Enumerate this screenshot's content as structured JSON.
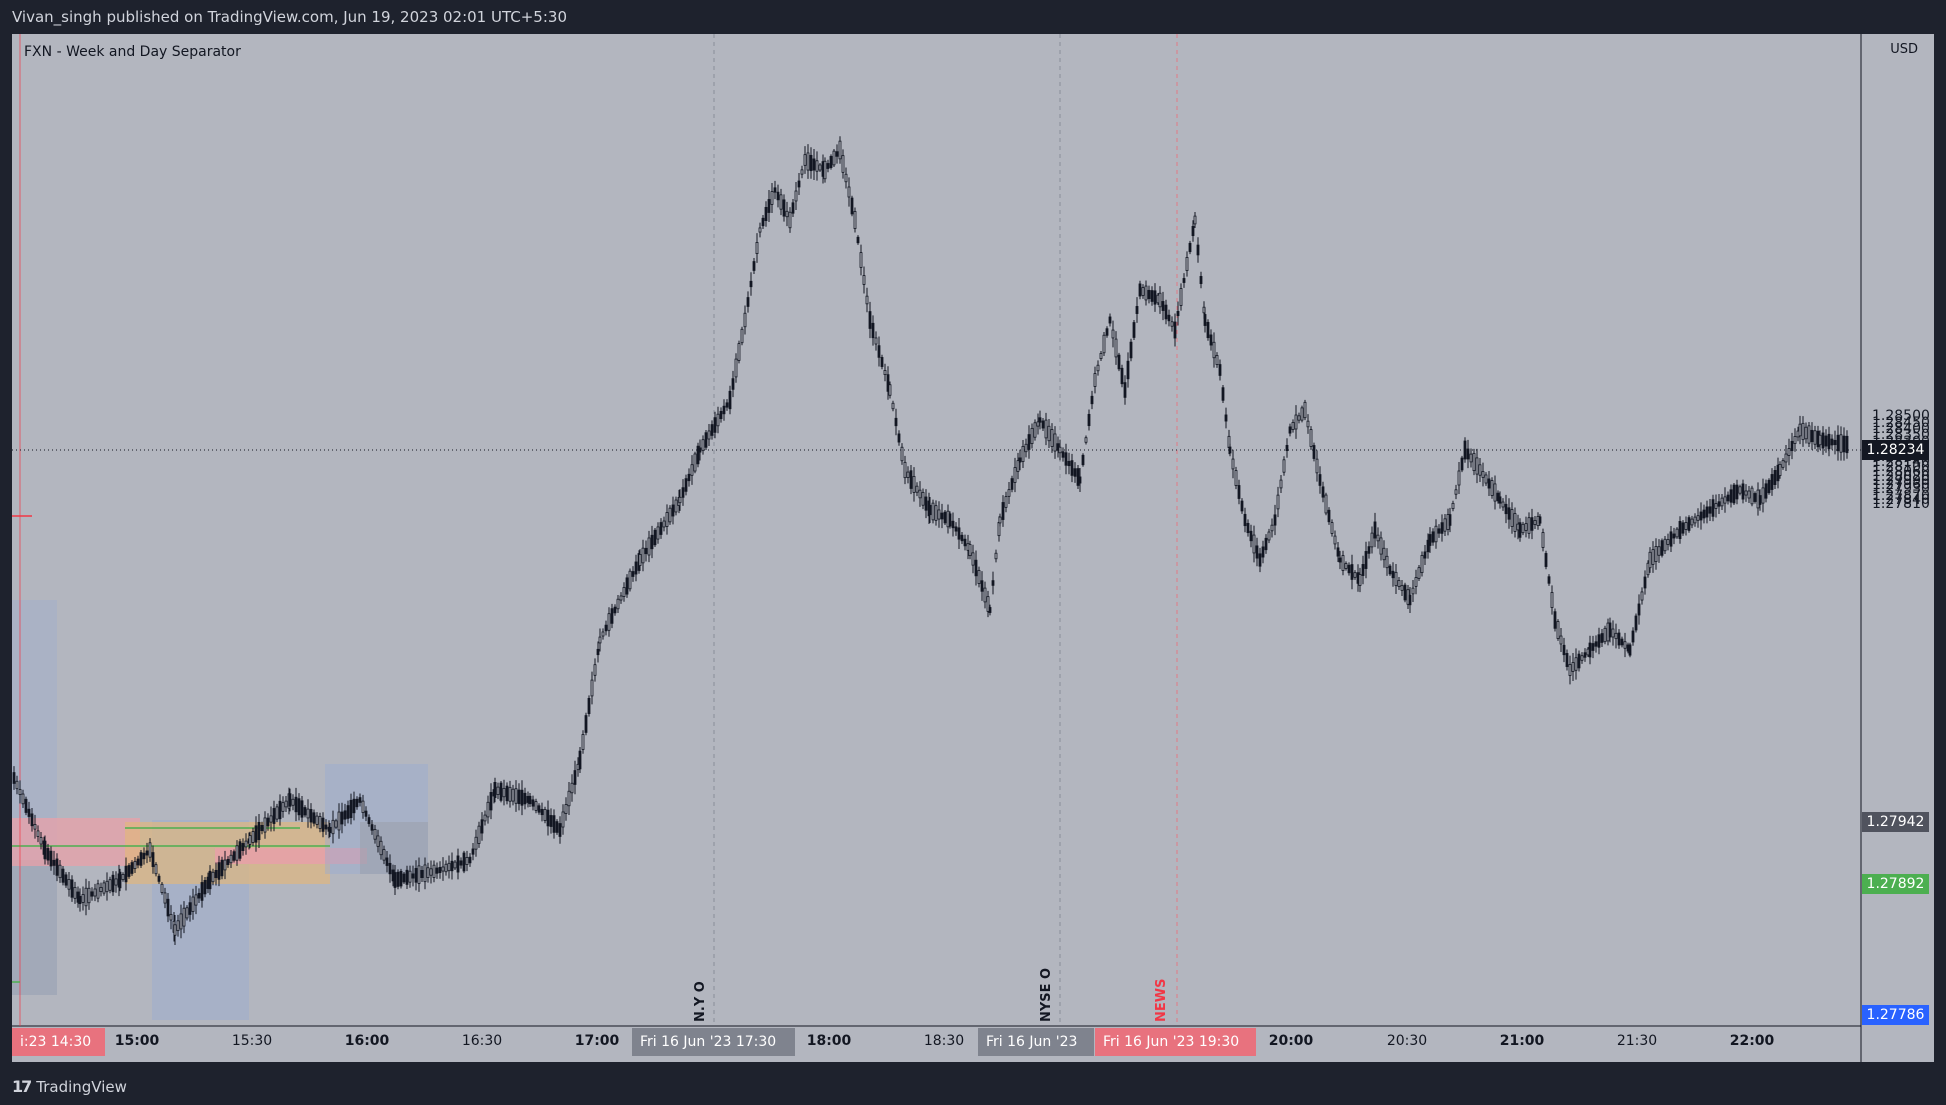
{
  "header": {
    "publish_line": "Vivan_singh published on TradingView.com, Jun 19, 2023 02:01 UTC+5:30"
  },
  "indicator": {
    "title": "FXN - Week and Day Separator"
  },
  "price_axis": {
    "currency": "USD",
    "ticks": [
      "1.28500",
      "1.28450",
      "1.28400",
      "1.28350",
      "1.28300",
      "1.28256",
      "1.28220",
      "1.28180",
      "1.28140",
      "1.28100",
      "1.28060",
      "1.28020",
      "1.27990",
      "1.27960",
      "1.27930",
      "1.27870",
      "1.27840",
      "1.27810"
    ],
    "tags": {
      "last_price": "1.28234",
      "gray_level": "1.27942",
      "green_level": "1.27892",
      "blue_level": "1.27786"
    }
  },
  "time_axis": {
    "ticks": [
      {
        "label": "15:00",
        "bold": true
      },
      {
        "label": "15:30",
        "bold": false
      },
      {
        "label": "16:00",
        "bold": true
      },
      {
        "label": "16:30",
        "bold": false
      },
      {
        "label": "17:00",
        "bold": true
      },
      {
        "label": "18:00",
        "bold": true
      },
      {
        "label": "18:30",
        "bold": false
      },
      {
        "label": "20:00",
        "bold": true
      },
      {
        "label": "20:30",
        "bold": false
      },
      {
        "label": "21:00",
        "bold": true
      },
      {
        "label": "21:30",
        "bold": false
      },
      {
        "label": "22:00",
        "bold": true
      }
    ],
    "date_tags": [
      {
        "label": "i:23   14:30"
      },
      {
        "label": "Fri 16 Jun '23   17:30"
      },
      {
        "label": "Fri 16 Jun '23"
      },
      {
        "label": "Fri 16 Jun '23   19:30"
      }
    ]
  },
  "session_labels": {
    "ny_open": "N.Y O",
    "nyse_open": "NYSE O",
    "news": "NEWS"
  },
  "colors": {
    "chart_bg": "#b3b6bf",
    "chrome_bg": "#1e222d",
    "candle": "#131722",
    "news": "#f23645",
    "green_tag": "#4caf50",
    "blue_tag": "#2962ff",
    "pink_zone": "#e8a0a8",
    "orange_zone": "#e3b77a",
    "blue_zone": "#9aabd0"
  },
  "footer": {
    "brand": "TradingView",
    "logo_icon": "tradingview-logo-icon"
  }
}
